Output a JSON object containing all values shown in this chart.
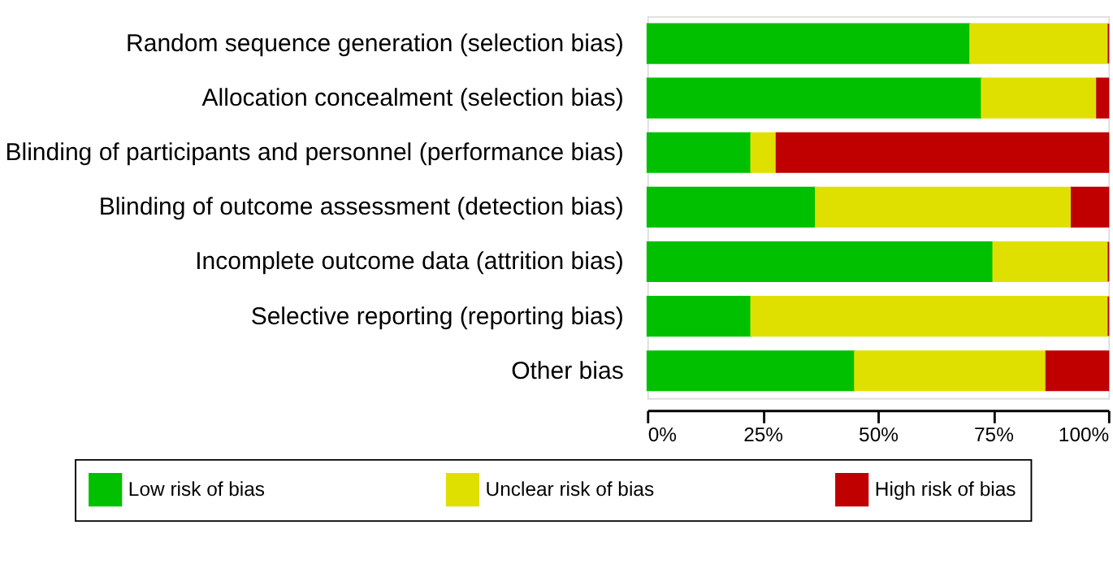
{
  "chart_data": {
    "type": "bar",
    "orientation": "horizontal",
    "stacked": true,
    "categories": [
      "Random sequence generation (selection bias)",
      "Allocation concealment (selection bias)",
      "Blinding of participants and personnel (performance bias)",
      "Blinding of outcome assessment (detection bias)",
      "Incomplete outcome data (attrition bias)",
      "Selective reporting (reporting bias)",
      "Other bias"
    ],
    "series": [
      {
        "name": "Low risk of bias",
        "color": "#00c000",
        "values": [
          70,
          72.5,
          22.5,
          36.5,
          75,
          22.5,
          45
        ]
      },
      {
        "name": "Unclear risk of bias",
        "color": "#e0e000",
        "values": [
          30,
          25,
          5.5,
          55.5,
          25,
          77.5,
          41.5
        ]
      },
      {
        "name": "High risk of bias",
        "color": "#c00000",
        "values": [
          0,
          2.5,
          72,
          8,
          0,
          0,
          13.5
        ]
      }
    ],
    "xlim": [
      0,
      100
    ],
    "xticks": [
      {
        "value": 0,
        "label": "0%"
      },
      {
        "value": 25,
        "label": "25%"
      },
      {
        "value": 50,
        "label": "50%"
      },
      {
        "value": 75,
        "label": "75%"
      },
      {
        "value": 100,
        "label": "100%"
      }
    ],
    "grid": false,
    "legend": "bottom"
  }
}
